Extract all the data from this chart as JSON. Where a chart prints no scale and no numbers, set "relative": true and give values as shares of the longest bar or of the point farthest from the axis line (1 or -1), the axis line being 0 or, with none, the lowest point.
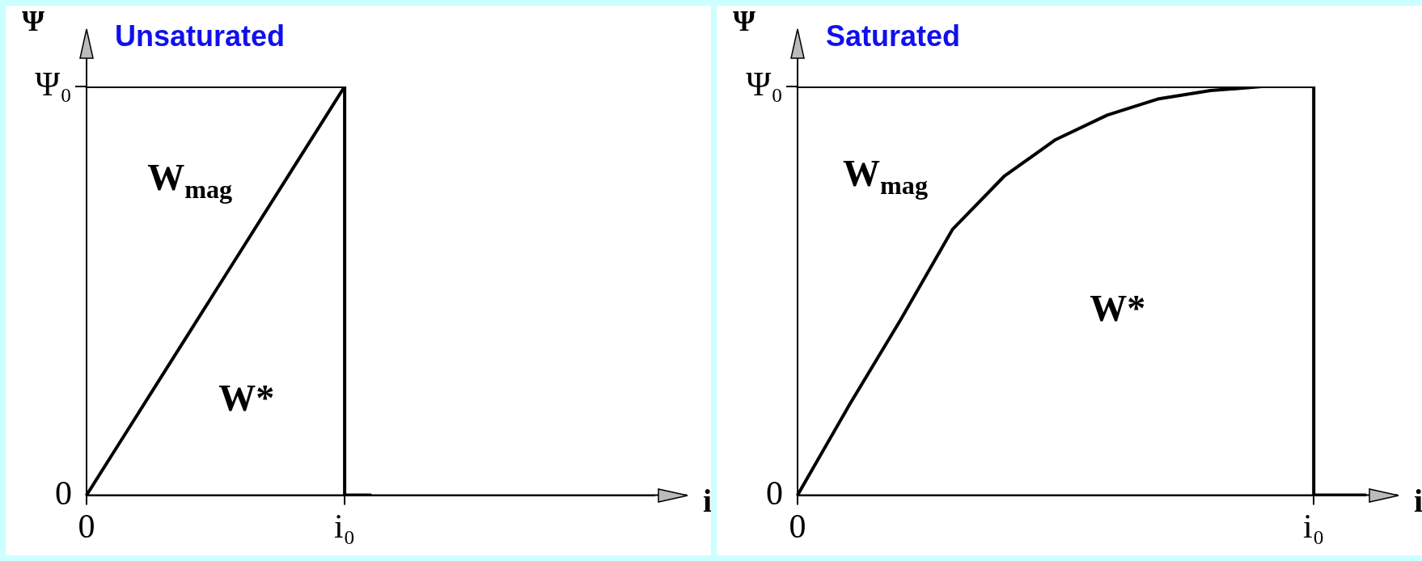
{
  "chart_data": [
    {
      "type": "line",
      "title": "Unsaturated",
      "xlabel": "i",
      "ylabel": "Ψ",
      "relative": true,
      "marker": "none",
      "line_style": "solid",
      "categories": [
        "0",
        null,
        null,
        null,
        null,
        null,
        null,
        null,
        null,
        null,
        "i₀",
        null,
        null,
        null,
        null,
        null,
        null,
        null,
        null,
        null,
        null,
        null,
        null
      ],
      "series": [
        {
          "color": "#000000",
          "values": [
            0,
            0.1,
            0.2,
            0.3,
            0.4,
            0.5,
            0.6,
            0.7,
            0.8,
            0.9,
            1,
            null,
            null,
            null,
            null,
            null,
            null,
            null,
            null,
            null,
            null,
            null,
            null
          ]
        },
        {
          "type": "step",
          "color": "#000000",
          "values": [
            1,
            1,
            1,
            1,
            1,
            1,
            1,
            1,
            1,
            1,
            1,
            0,
            null,
            null,
            null,
            null,
            null,
            null,
            null,
            null,
            null,
            null,
            null
          ]
        }
      ],
      "annotations": [
        "Ψ₀",
        "0",
        "W$_{mag}$",
        "W*"
      ]
    },
    {
      "type": "line",
      "title": "Saturated",
      "xlabel": "i",
      "ylabel": "Ψ",
      "relative": true,
      "marker": "none",
      "line_style": "solid",
      "categories": [
        "0",
        null,
        null,
        null,
        null,
        null,
        null,
        null,
        null,
        null,
        "i₀",
        null
      ],
      "series": [
        {
          "color": "#000000",
          "values": [
            0,
            0.22,
            0.43,
            0.65,
            0.78,
            0.87,
            0.93,
            0.97,
            0.99,
            1,
            1,
            null
          ]
        },
        {
          "type": "step",
          "color": "#000000",
          "values": [
            1,
            1,
            1,
            1,
            1,
            1,
            1,
            1,
            1,
            1,
            1,
            0
          ]
        }
      ],
      "annotations": [
        "Ψ₀",
        "0",
        "W$_{mag}$",
        "W*"
      ]
    }
  ]
}
